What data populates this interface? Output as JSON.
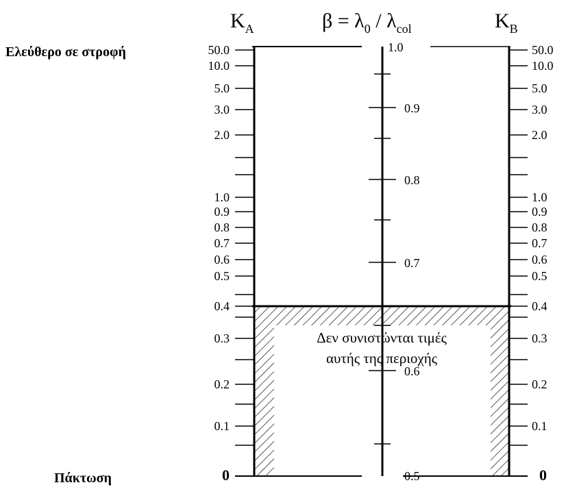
{
  "header": {
    "ka": "K",
    "ka_sub": "A",
    "beta_lhs": "β = λ",
    "beta_sub0": "0",
    "beta_slash": " / λ",
    "beta_subcol": "col",
    "kb": "K",
    "kb_sub": "B"
  },
  "side_labels": {
    "top": "Ελεύθερο σε στροφή",
    "bottom": "Πάκτωση"
  },
  "note": {
    "line1": "Δεν συνιστώνται τιμές",
    "line2": "αυτής της περιοχής"
  },
  "k_scale": {
    "labels": [
      "50.0",
      "10.0",
      "5.0",
      "3.0",
      "2.0",
      "1.0",
      "0.9",
      "0.8",
      "0.7",
      "0.6",
      "0.5",
      "0.4",
      "0.3",
      "0.2",
      "0.1",
      "0"
    ]
  },
  "beta_scale": {
    "labels": [
      "1.0",
      "0.9",
      "0.8",
      "0.7",
      "0.6",
      "0.5"
    ]
  },
  "colors": {
    "line": "#000000",
    "background": "#ffffff"
  }
}
